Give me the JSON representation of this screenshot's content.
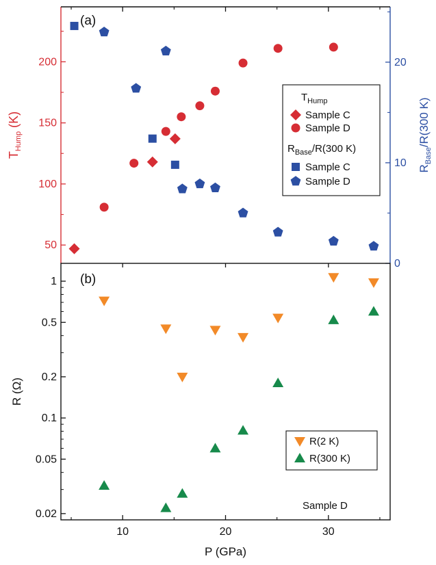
{
  "chart_data": [
    {
      "panel_label": "(a)",
      "type": "scatter",
      "xlim": [
        4,
        36
      ],
      "ylim_left": [
        35,
        245
      ],
      "ylim_right": [
        0,
        25.5
      ],
      "left_axis": {
        "label_main": "T",
        "label_sub": "Hump",
        "label_unit": " (K)",
        "ticks": [
          50,
          100,
          150,
          200
        ],
        "color": "#d62d34"
      },
      "right_axis": {
        "label_main": "R",
        "label_sub": "Base",
        "label_unit": "/R(300 K)",
        "ticks": [
          0,
          10,
          20
        ],
        "color": "#2c4fa3"
      },
      "legend": {
        "placement": "center-right",
        "group1_title_main": "T",
        "group1_title_sub": "Hump",
        "group2_title_main": "R",
        "group2_title_sub": "Base",
        "group2_title_unit": "/R(300 K)"
      },
      "series": [
        {
          "name": "Sample C",
          "group": "THump",
          "axis": "left",
          "marker": "diamond",
          "color": "#d62d34",
          "points": [
            [
              5.3,
              47
            ],
            [
              12.9,
              118
            ],
            [
              15.1,
              137
            ]
          ]
        },
        {
          "name": "Sample D",
          "group": "THump",
          "axis": "left",
          "marker": "circle",
          "color": "#d62d34",
          "points": [
            [
              8.2,
              81
            ],
            [
              11.1,
              117
            ],
            [
              14.2,
              143
            ],
            [
              15.7,
              155
            ],
            [
              17.5,
              164
            ],
            [
              19.0,
              176
            ],
            [
              21.7,
              199
            ],
            [
              25.1,
              211
            ],
            [
              30.5,
              212
            ]
          ]
        },
        {
          "name": "Sample C",
          "group": "RBase",
          "axis": "right",
          "marker": "square",
          "color": "#2c4fa3",
          "points": [
            [
              5.3,
              23.6
            ],
            [
              12.9,
              12.4
            ],
            [
              15.1,
              9.8
            ]
          ]
        },
        {
          "name": "Sample D",
          "group": "RBase",
          "axis": "right",
          "marker": "pentagon",
          "color": "#2c4fa3",
          "points": [
            [
              8.2,
              23.0
            ],
            [
              11.3,
              17.4
            ],
            [
              14.2,
              21.1
            ],
            [
              15.8,
              7.4
            ],
            [
              17.5,
              7.9
            ],
            [
              19.0,
              7.5
            ],
            [
              21.7,
              5.0
            ],
            [
              25.1,
              3.1
            ],
            [
              30.5,
              2.2
            ],
            [
              34.4,
              1.7
            ]
          ]
        }
      ]
    },
    {
      "panel_label": "(b)",
      "type": "scatter",
      "yscale": "log",
      "xlim": [
        4,
        36
      ],
      "ylim": [
        0.018,
        1.35
      ],
      "xlabel": "P (GPa)",
      "xticks": [
        10,
        20,
        30
      ],
      "ylabel": "R (Ω)",
      "yticks": [
        0.02,
        0.05,
        0.1,
        0.2,
        0.5,
        1
      ],
      "ytick_labels": [
        "0.02",
        "0.05",
        "0.1",
        "0.2",
        "0.5",
        "1"
      ],
      "annotation": "Sample D",
      "legend": {
        "placement": "lower-right"
      },
      "series": [
        {
          "name": "R(2 K)",
          "marker": "triangle-down",
          "color": "#f28a28",
          "points": [
            [
              8.2,
              0.72
            ],
            [
              14.2,
              0.45
            ],
            [
              15.8,
              0.2
            ],
            [
              19.0,
              0.44
            ],
            [
              21.7,
              0.39
            ],
            [
              25.1,
              0.54
            ],
            [
              30.5,
              1.07
            ],
            [
              34.4,
              0.98
            ]
          ]
        },
        {
          "name": "R(300 K)",
          "marker": "triangle-up",
          "color": "#178a4b",
          "points": [
            [
              8.2,
              0.032
            ],
            [
              14.2,
              0.022
            ],
            [
              15.8,
              0.028
            ],
            [
              19.0,
              0.06
            ],
            [
              21.7,
              0.081
            ],
            [
              25.1,
              0.18
            ],
            [
              30.5,
              0.52
            ],
            [
              34.4,
              0.6
            ]
          ]
        }
      ]
    }
  ]
}
